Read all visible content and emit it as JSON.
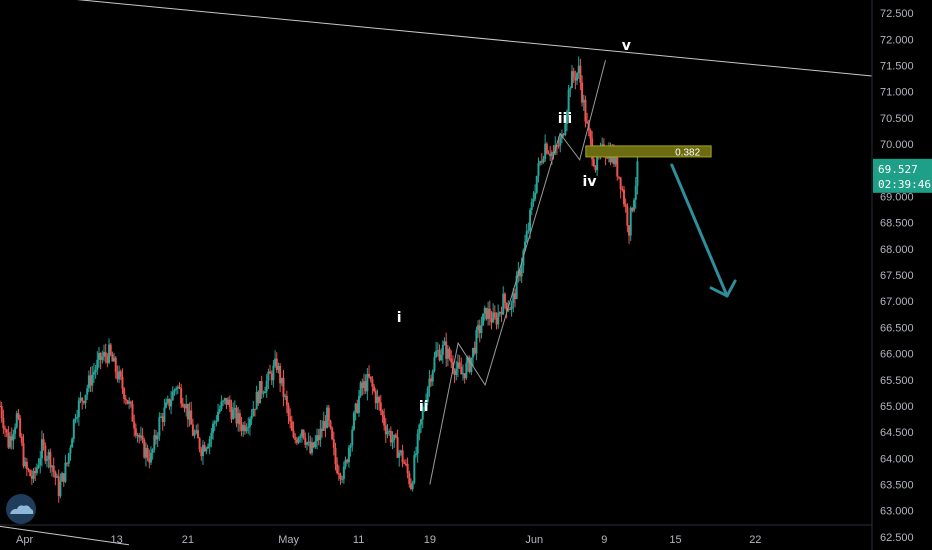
{
  "colors": {
    "background": "#000000",
    "up": "#26a69a",
    "down": "#ef5350",
    "price_badge": "#1e9f88",
    "fib_fill": "#6b6b12",
    "arrow": "#2e8e9c",
    "trendline": "#c8c8c8"
  },
  "price": {
    "current_label": "69.527",
    "countdown_label": "02:39:46"
  },
  "fib_level": {
    "label": "0.382",
    "value": 69.85
  },
  "wave_labels": [
    {
      "text": "i",
      "x": 31.5,
      "y": 66.6
    },
    {
      "text": "ii",
      "x": 33.5,
      "y": 64.9
    },
    {
      "text": "iii",
      "x": 45.0,
      "y": 70.4
    },
    {
      "text": "iv",
      "x": 47.0,
      "y": 69.2
    },
    {
      "text": "v",
      "x": 50.0,
      "y": 71.8
    }
  ],
  "icons": {
    "logo": "tradingview-cloud-icon"
  },
  "chart_data": {
    "type": "candlestick",
    "y_axis": {
      "position": "right",
      "min": 62.25,
      "max": 72.75,
      "ticks": [
        "62.500",
        "63.000",
        "63.500",
        "64.000",
        "64.500",
        "65.000",
        "65.500",
        "66.000",
        "66.500",
        "67.000",
        "67.500",
        "68.000",
        "68.500",
        "69.000",
        "69.500",
        "70.000",
        "70.500",
        "71.000",
        "71.500",
        "72.000",
        "72.500"
      ]
    },
    "x_axis": {
      "min": -1,
      "max": 70,
      "ticks": [
        {
          "label": "Apr",
          "x": 1
        },
        {
          "label": "13",
          "x": 8.5
        },
        {
          "label": "21",
          "x": 14.3
        },
        {
          "label": "May",
          "x": 22.5
        },
        {
          "label": "11",
          "x": 28.2
        },
        {
          "label": "19",
          "x": 34
        },
        {
          "label": "Jun",
          "x": 42.5
        },
        {
          "label": "9",
          "x": 48.2
        },
        {
          "label": "15",
          "x": 54
        },
        {
          "label": "22",
          "x": 60.5
        }
      ]
    },
    "grid": false,
    "closes": [
      65.0,
      64.3,
      64.8,
      63.8,
      63.6,
      64.2,
      64.0,
      63.4,
      63.9,
      64.9,
      65.2,
      65.6,
      65.9,
      66.0,
      65.6,
      65.2,
      64.7,
      64.2,
      64.0,
      64.7,
      65.0,
      65.4,
      65.1,
      64.5,
      64.2,
      64.4,
      64.9,
      65.1,
      64.8,
      64.6,
      64.9,
      65.3,
      65.5,
      65.8,
      65.1,
      64.3,
      64.6,
      64.1,
      64.4,
      64.8,
      63.9,
      63.7,
      64.6,
      65.3,
      65.5,
      65.1,
      64.6,
      64.3,
      64.0,
      63.5,
      64.5,
      65.4,
      66.0,
      66.1,
      65.8,
      65.6,
      65.8,
      66.4,
      66.8,
      66.6,
      67.0,
      66.9,
      67.6,
      68.4,
      69.4,
      70.0,
      69.8,
      70.1,
      71.2,
      71.4,
      70.3,
      69.6,
      69.9,
      69.8,
      69.3,
      68.4,
      69.5
    ],
    "trendlines": [
      {
        "from": [
          -1,
          72.9
        ],
        "to": [
          70,
          71.3
        ]
      },
      {
        "from": [
          -1,
          62.7
        ],
        "to": [
          9.5,
          62.35
        ]
      }
    ],
    "wave_path": [
      [
        34,
        63.5
      ],
      [
        36.3,
        66.2
      ],
      [
        38.5,
        65.4
      ],
      [
        44.6,
        70.2
      ],
      [
        46.2,
        69.7
      ],
      [
        48.3,
        71.6
      ]
    ],
    "projection_arrow": {
      "from": [
        53.7,
        69.6
      ],
      "to": [
        58.2,
        67.1
      ]
    }
  }
}
